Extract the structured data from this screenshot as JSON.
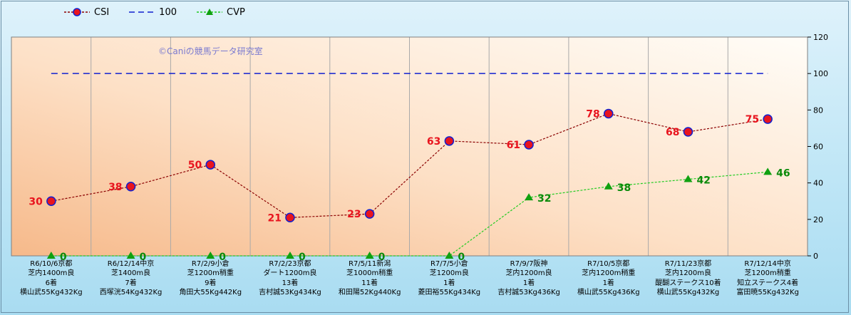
{
  "chart_data": {
    "type": "line",
    "watermark": "©Caniの競馬データ研究室",
    "legend": [
      "CSI",
      "100",
      "CVP"
    ],
    "ylim": [
      0,
      120
    ],
    "yticks": [
      "0",
      "20",
      "40",
      "60",
      "80",
      "100",
      "120"
    ],
    "categories": [
      [
        "R6/10/6京都",
        "芝内1400m良",
        "6着",
        "横山武55Kg432Kg"
      ],
      [
        "R6/12/14中京",
        "芝1400m良",
        "7着",
        "西塚洸54Kg432Kg"
      ],
      [
        "R7/2/9小倉",
        "芝1200m稍重",
        "9着",
        "角田大55Kg442Kg"
      ],
      [
        "R7/2/23京都",
        "ダート1200m良",
        "13着",
        "吉村誠53Kg434Kg"
      ],
      [
        "R7/5/11新潟",
        "芝1000m稍重",
        "11着",
        "和田陽52Kg440Kg"
      ],
      [
        "R7/7/5小倉",
        "芝1200m良",
        "1着",
        "菱田裕55Kg434Kg"
      ],
      [
        "R7/9/7阪神",
        "芝内1200m良",
        "1着",
        "吉村誠53Kg436Kg"
      ],
      [
        "R7/10/5京都",
        "芝内1200m稍重",
        "1着",
        "横山武55Kg436Kg"
      ],
      [
        "R7/11/23京都",
        "芝内1200m良",
        "醍醐ステークス10着",
        "横山武55Kg432Kg"
      ],
      [
        "R7/12/14中京",
        "芝1200m稍重",
        "知立ステークス4着",
        "富田暁55Kg432Kg"
      ]
    ],
    "series": [
      {
        "name": "CSI",
        "color": "#8b0000",
        "marker_color": "#e8141e",
        "label_color": "#e8141e",
        "values": [
          30,
          38,
          50,
          21,
          23,
          63,
          61,
          78,
          68,
          75
        ],
        "labels": [
          "30",
          "38",
          "50",
          "21",
          "23",
          "63",
          "61",
          "78",
          "68",
          "75"
        ]
      },
      {
        "name": "100",
        "color": "#1020d0",
        "values": [
          100,
          100,
          100,
          100,
          100,
          100,
          100,
          100,
          100,
          100
        ]
      },
      {
        "name": "CVP",
        "color": "#22cc22",
        "marker_color": "#10a010",
        "label_color": "#0a8a0a",
        "values": [
          0,
          0,
          0,
          0,
          0,
          0,
          32,
          38,
          42,
          46
        ],
        "labels": [
          "0",
          "0",
          "0",
          "0",
          "0",
          "0",
          "32",
          "38",
          "42",
          "46"
        ]
      }
    ]
  }
}
